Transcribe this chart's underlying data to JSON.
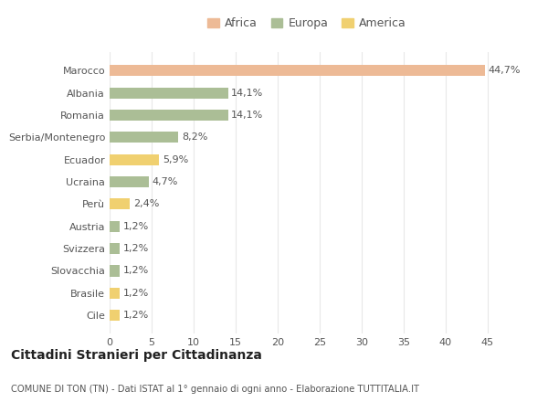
{
  "categories": [
    "Marocco",
    "Albania",
    "Romania",
    "Serbia/Montenegro",
    "Ecuador",
    "Ucraina",
    "Perù",
    "Austria",
    "Svizzera",
    "Slovacchia",
    "Brasile",
    "Cile"
  ],
  "values": [
    44.7,
    14.1,
    14.1,
    8.2,
    5.9,
    4.7,
    2.4,
    1.2,
    1.2,
    1.2,
    1.2,
    1.2
  ],
  "labels": [
    "44,7%",
    "14,1%",
    "14,1%",
    "8,2%",
    "5,9%",
    "4,7%",
    "2,4%",
    "1,2%",
    "1,2%",
    "1,2%",
    "1,2%",
    "1,2%"
  ],
  "colors": [
    "#EDBA96",
    "#ABBE96",
    "#ABBE96",
    "#ABBE96",
    "#F0D070",
    "#ABBE96",
    "#F0D070",
    "#ABBE96",
    "#ABBE96",
    "#ABBE96",
    "#F0D070",
    "#F0D070"
  ],
  "legend": [
    {
      "label": "Africa",
      "color": "#EDBA96"
    },
    {
      "label": "Europa",
      "color": "#ABBE96"
    },
    {
      "label": "America",
      "color": "#F0D070"
    }
  ],
  "xlim": [
    0,
    47
  ],
  "xticks": [
    0,
    5,
    10,
    15,
    20,
    25,
    30,
    35,
    40,
    45
  ],
  "title1": "Cittadini Stranieri per Cittadinanza",
  "title2": "COMUNE DI TON (TN) - Dati ISTAT al 1° gennaio di ogni anno - Elaborazione TUTTITALIA.IT",
  "background_color": "#ffffff",
  "grid_color": "#e8e8e8",
  "bar_height": 0.5,
  "text_color": "#555555",
  "label_fontsize": 8,
  "ytick_fontsize": 8,
  "xtick_fontsize": 8,
  "legend_fontsize": 9
}
